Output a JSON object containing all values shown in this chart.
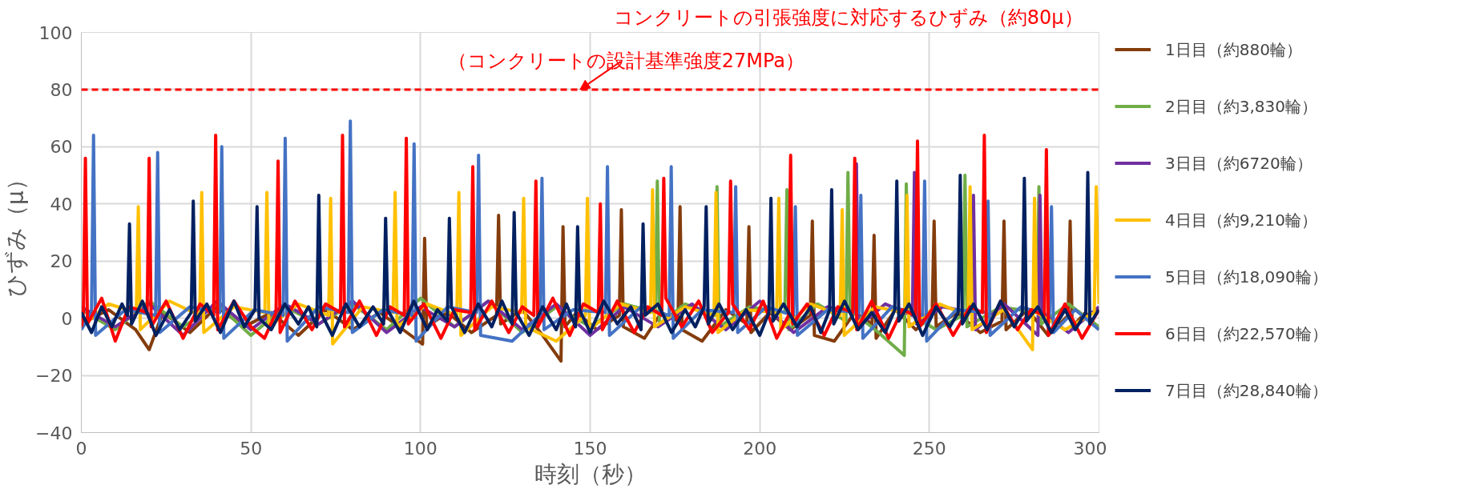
{
  "chart_data": {
    "type": "line",
    "xlabel": "時刻（秒）",
    "ylabel": "ひずみ（μ）",
    "xlim": [
      0,
      300
    ],
    "xticks": [
      0,
      50,
      100,
      150,
      200,
      250,
      300
    ],
    "ylim": [
      -40,
      100
    ],
    "yticks": [
      {
        "value": -40,
        "label": "−40"
      },
      {
        "value": -20,
        "label": "−20"
      },
      0,
      20,
      40,
      60,
      80,
      100
    ],
    "grid": true,
    "legend": "right",
    "line_style": "solid",
    "annotations": [
      "（コンクリートの設計基準強度27MPa）"
    ],
    "ref_lines": [
      {
        "axis": "y",
        "value": 80,
        "label": "コンクリートの引張強度に対応するひずみ（約80μ）",
        "color": "#ff0000",
        "line_style": "dashed"
      }
    ],
    "series": [
      {
        "name": "1日目（約880輪）",
        "color": "#843c0c",
        "x": [
          0,
          8,
          16,
          20,
          24,
          32,
          40,
          48,
          56,
          64,
          72,
          80,
          88,
          96,
          100.6,
          101.2,
          101.8,
          108,
          115,
          122.4,
          123,
          123.6,
          130,
          136,
          141.4,
          142,
          142.6,
          146,
          152,
          158.6,
          159.2,
          159.8,
          166,
          171,
          175.9,
          176.5,
          177.1,
          183,
          190,
          196.2,
          196.8,
          197.4,
          203,
          209,
          214.9,
          215.5,
          216.1,
          222,
          228,
          233.1,
          233.7,
          234.3,
          240,
          246,
          250.8,
          251.4,
          252,
          258,
          265,
          271.4,
          272,
          272.6,
          279,
          285,
          290.9,
          291.5,
          292.1,
          296,
          300
        ],
        "values": [
          -2,
          3,
          -4,
          -11,
          2,
          -5,
          4,
          -3,
          2,
          -6,
          3,
          -4,
          2,
          -5,
          -9,
          28,
          -3,
          2,
          -5,
          1,
          36,
          -2,
          3,
          -6,
          -15,
          32,
          -3,
          2,
          -4,
          1,
          38,
          -3,
          -7,
          2,
          -1,
          39,
          -4,
          -8,
          3,
          -2,
          32,
          -5,
          2,
          -4,
          1,
          34,
          -6,
          -8,
          2,
          -2,
          29,
          -7,
          3,
          -4,
          1,
          34,
          -3,
          2,
          -5,
          -1,
          34,
          -4,
          3,
          -6,
          1,
          34,
          -3,
          2,
          -4
        ]
      },
      {
        "name": "2日目（約3,830輪）",
        "color": "#70ad47",
        "x": [
          0,
          10,
          20,
          30,
          40,
          50,
          60,
          70,
          80,
          90,
          100,
          110,
          120,
          130,
          140,
          150,
          160,
          169.2,
          169.8,
          170.4,
          178,
          186.8,
          187.4,
          188,
          197,
          207.4,
          208,
          208.6,
          217,
          225.4,
          226,
          226.6,
          235,
          242.6,
          243.2,
          243.8,
          252,
          259.9,
          260.5,
          261.1,
          271,
          281.7,
          282.3,
          282.9,
          291,
          300
        ],
        "values": [
          3,
          -4,
          6,
          -3,
          5,
          -6,
          4,
          -2,
          5,
          -4,
          7,
          -3,
          6,
          -5,
          4,
          -3,
          5,
          2,
          48,
          -2,
          5,
          1,
          46,
          -3,
          4,
          2,
          45,
          -4,
          5,
          -1,
          51,
          3,
          -5,
          -13,
          47,
          2,
          -4,
          1,
          50,
          -3,
          4,
          2,
          46,
          -2,
          5,
          -3
        ]
      },
      {
        "name": "3日目（約6720輪）",
        "color": "#7030a0",
        "x": [
          0,
          10,
          20,
          30,
          40,
          50,
          60,
          70,
          80,
          90,
          100,
          110,
          120,
          130,
          140,
          150,
          160,
          170,
          180,
          190,
          200,
          210,
          220,
          227.9,
          228.5,
          229.1,
          237,
          245,
          245.6,
          246.2,
          254,
          262.4,
          263,
          263.6,
          272,
          282,
          282.6,
          283.2,
          291,
          300
        ],
        "values": [
          4,
          -3,
          5,
          -6,
          6,
          -4,
          5,
          -2,
          6,
          -5,
          4,
          -3,
          6,
          -4,
          5,
          -6,
          4,
          -3,
          5,
          -4,
          6,
          -5,
          4,
          2,
          54,
          -3,
          5,
          1,
          51,
          -2,
          4,
          2,
          43,
          -4,
          5,
          -6,
          43,
          2,
          -5,
          4
        ]
      },
      {
        "name": "4日目（約9,210輪）",
        "color": "#ffc000",
        "x": [
          0,
          8,
          16.2,
          16.8,
          17.4,
          26,
          34.9,
          35.5,
          36.1,
          45,
          54.1,
          54.7,
          55.3,
          64,
          72.9,
          73.5,
          74.1,
          83,
          91.9,
          92.5,
          93.1,
          102,
          110.7,
          111.3,
          111.9,
          121,
          129.8,
          130.4,
          131,
          140,
          148.6,
          149.2,
          149.8,
          159,
          167.8,
          168.4,
          169,
          178,
          186.5,
          187.1,
          187.7,
          196,
          205,
          205.6,
          206.2,
          215,
          223.7,
          224.3,
          224.9,
          234,
          242.8,
          243.4,
          244,
          253,
          261.4,
          262,
          262.6,
          272,
          280.4,
          281,
          281.6,
          290,
          298.6,
          299.2,
          300
        ],
        "values": [
          -3,
          5,
          2,
          39,
          -4,
          6,
          1,
          44,
          -5,
          4,
          2,
          44,
          -3,
          5,
          1,
          42,
          -9,
          4,
          2,
          44,
          -3,
          5,
          1,
          44,
          -6,
          4,
          2,
          42,
          -3,
          -8,
          1,
          42,
          -4,
          5,
          2,
          45,
          -3,
          4,
          1,
          44,
          -5,
          3,
          2,
          42,
          -4,
          5,
          1,
          38,
          -6,
          4,
          2,
          43,
          -3,
          5,
          1,
          46,
          -4,
          3,
          -11,
          42,
          2,
          -4,
          2,
          46,
          5
        ]
      },
      {
        "name": "5日目（約18,090輪）",
        "color": "#4472c4",
        "x": [
          0,
          3,
          3.6,
          4.2,
          13,
          21.9,
          22.5,
          23.1,
          32,
          40.8,
          41.4,
          42,
          51,
          59.5,
          60.1,
          60.7,
          70,
          78.7,
          79.3,
          79.9,
          89,
          97.5,
          98.1,
          98.7,
          108,
          116.5,
          117.1,
          117.7,
          127,
          135.2,
          135.8,
          136.4,
          145,
          154.5,
          155.1,
          155.7,
          165,
          173.3,
          173.9,
          174.5,
          183,
          192.3,
          192.9,
          193.5,
          202,
          209.9,
          210.5,
          211.1,
          220,
          229.2,
          229.8,
          230.4,
          239,
          248,
          248.6,
          249.2,
          258,
          266.7,
          267.3,
          267.9,
          277,
          285.4,
          286,
          286.6,
          293,
          300
        ],
        "values": [
          -4,
          2,
          64,
          -6,
          3,
          1,
          58,
          -5,
          4,
          2,
          60,
          -7,
          3,
          1,
          63,
          -8,
          4,
          2,
          69,
          -5,
          3,
          1,
          61,
          -8,
          4,
          2,
          57,
          -6,
          -8,
          1,
          49,
          -4,
          3,
          2,
          53,
          -6,
          4,
          1,
          53,
          -7,
          3,
          2,
          46,
          -5,
          4,
          1,
          39,
          -6,
          3,
          2,
          43,
          -7,
          4,
          1,
          48,
          -8,
          3,
          2,
          41,
          -6,
          4,
          1,
          39,
          -5,
          3,
          -4
        ]
      },
      {
        "name": "6日目（約22,570輪）",
        "color": "#ff0000",
        "x": [
          0,
          0.6,
          1.2,
          1.8,
          6,
          10,
          14,
          19.4,
          20,
          20.6,
          25,
          30,
          35,
          39,
          39.6,
          40.2,
          45,
          50,
          54,
          57.4,
          58,
          58.6,
          63,
          68,
          72,
          76.4,
          77,
          77.6,
          82,
          87,
          91,
          95.2,
          95.8,
          96.4,
          101,
          106,
          110,
          114.8,
          115.4,
          116,
          121,
          126,
          130,
          133.4,
          134,
          134.6,
          139,
          144,
          148,
          152.4,
          153,
          153.6,
          158,
          163,
          167,
          171.1,
          171.7,
          172.3,
          177,
          182,
          186,
          190.8,
          191.4,
          192,
          197,
          201,
          205,
          208.5,
          209.1,
          209.7,
          214,
          219,
          223,
          227.4,
          228,
          228.6,
          233,
          238,
          242,
          245.9,
          246.5,
          247.1,
          252,
          257,
          262,
          265.6,
          266.2,
          266.8,
          271,
          276,
          280,
          283.9,
          284.5,
          285.1,
          290,
          295,
          300
        ],
        "values": [
          -3,
          2,
          56,
          -2,
          7,
          -8,
          4,
          2,
          56,
          -3,
          6,
          -7,
          5,
          1,
          64,
          -4,
          6,
          -3,
          -7,
          2,
          55,
          -5,
          6,
          -4,
          5,
          2,
          64,
          -3,
          6,
          -6,
          4,
          1,
          63,
          -2,
          5,
          -7,
          3,
          2,
          53,
          -4,
          6,
          -5,
          4,
          1,
          48,
          -3,
          7,
          -6,
          5,
          2,
          40,
          -4,
          6,
          -5,
          4,
          1,
          49,
          7,
          -3,
          6,
          -5,
          2,
          48,
          5,
          -4,
          6,
          -7,
          1,
          57,
          -2,
          5,
          -6,
          4,
          2,
          56,
          -4,
          6,
          -7,
          3,
          1,
          62,
          -3,
          5,
          -6,
          4,
          2,
          64,
          -5,
          6,
          -4,
          3,
          1,
          59,
          -6,
          5,
          -7,
          3
        ]
      },
      {
        "name": "7日目（約28,840輪）",
        "color": "#002060",
        "x": [
          0,
          3,
          6,
          9,
          12,
          13.6,
          14.2,
          14.8,
          18,
          22,
          26,
          29,
          32.4,
          33,
          33.6,
          37,
          41,
          45,
          48,
          51.2,
          51.8,
          52.4,
          56,
          60,
          64,
          67,
          69.4,
          70,
          70.6,
          74,
          78,
          82,
          86,
          89.1,
          89.7,
          90.3,
          94,
          98,
          102,
          105,
          107.9,
          108.5,
          109.1,
          113,
          117,
          121,
          124,
          127,
          127.6,
          128.2,
          132,
          136,
          140,
          143,
          145.7,
          146.3,
          146.9,
          150,
          154,
          158,
          162,
          165,
          165.6,
          166.2,
          170,
          174,
          178,
          181,
          183.6,
          184.2,
          184.8,
          188,
          192,
          196,
          200,
          202.7,
          203.3,
          203.9,
          207,
          211,
          215,
          218,
          220.6,
          221.2,
          221.8,
          225,
          229,
          233,
          237,
          239.8,
          240.4,
          241,
          244,
          248,
          252,
          256,
          258.5,
          259.1,
          259.7,
          263,
          267,
          271,
          275,
          277.4,
          278,
          278.6,
          282,
          286,
          290,
          293,
          296.1,
          296.7,
          297.3,
          300
        ],
        "values": [
          2,
          -5,
          4,
          -3,
          5,
          1,
          33,
          -2,
          6,
          -6,
          3,
          -4,
          2,
          41,
          -1,
          5,
          -5,
          6,
          -3,
          3,
          39,
          0,
          -4,
          5,
          -2,
          4,
          -3,
          43,
          2,
          -6,
          5,
          -3,
          4,
          -2,
          35,
          3,
          -5,
          6,
          -4,
          3,
          -1,
          35,
          4,
          -5,
          5,
          -3,
          6,
          -2,
          37,
          2,
          -6,
          4,
          -4,
          5,
          -3,
          32,
          3,
          -5,
          6,
          -2,
          4,
          -4,
          33,
          1,
          5,
          -5,
          3,
          -3,
          4,
          39,
          -2,
          5,
          -4,
          3,
          -6,
          2,
          42,
          -1,
          5,
          -3,
          4,
          -5,
          3,
          45,
          -2,
          6,
          -4,
          2,
          -5,
          3,
          48,
          -1,
          5,
          -6,
          4,
          -3,
          2,
          50,
          -2,
          5,
          -4,
          6,
          -3,
          2,
          49,
          -1,
          4,
          -5,
          3,
          -4,
          2,
          51,
          -2,
          3
        ]
      }
    ]
  }
}
